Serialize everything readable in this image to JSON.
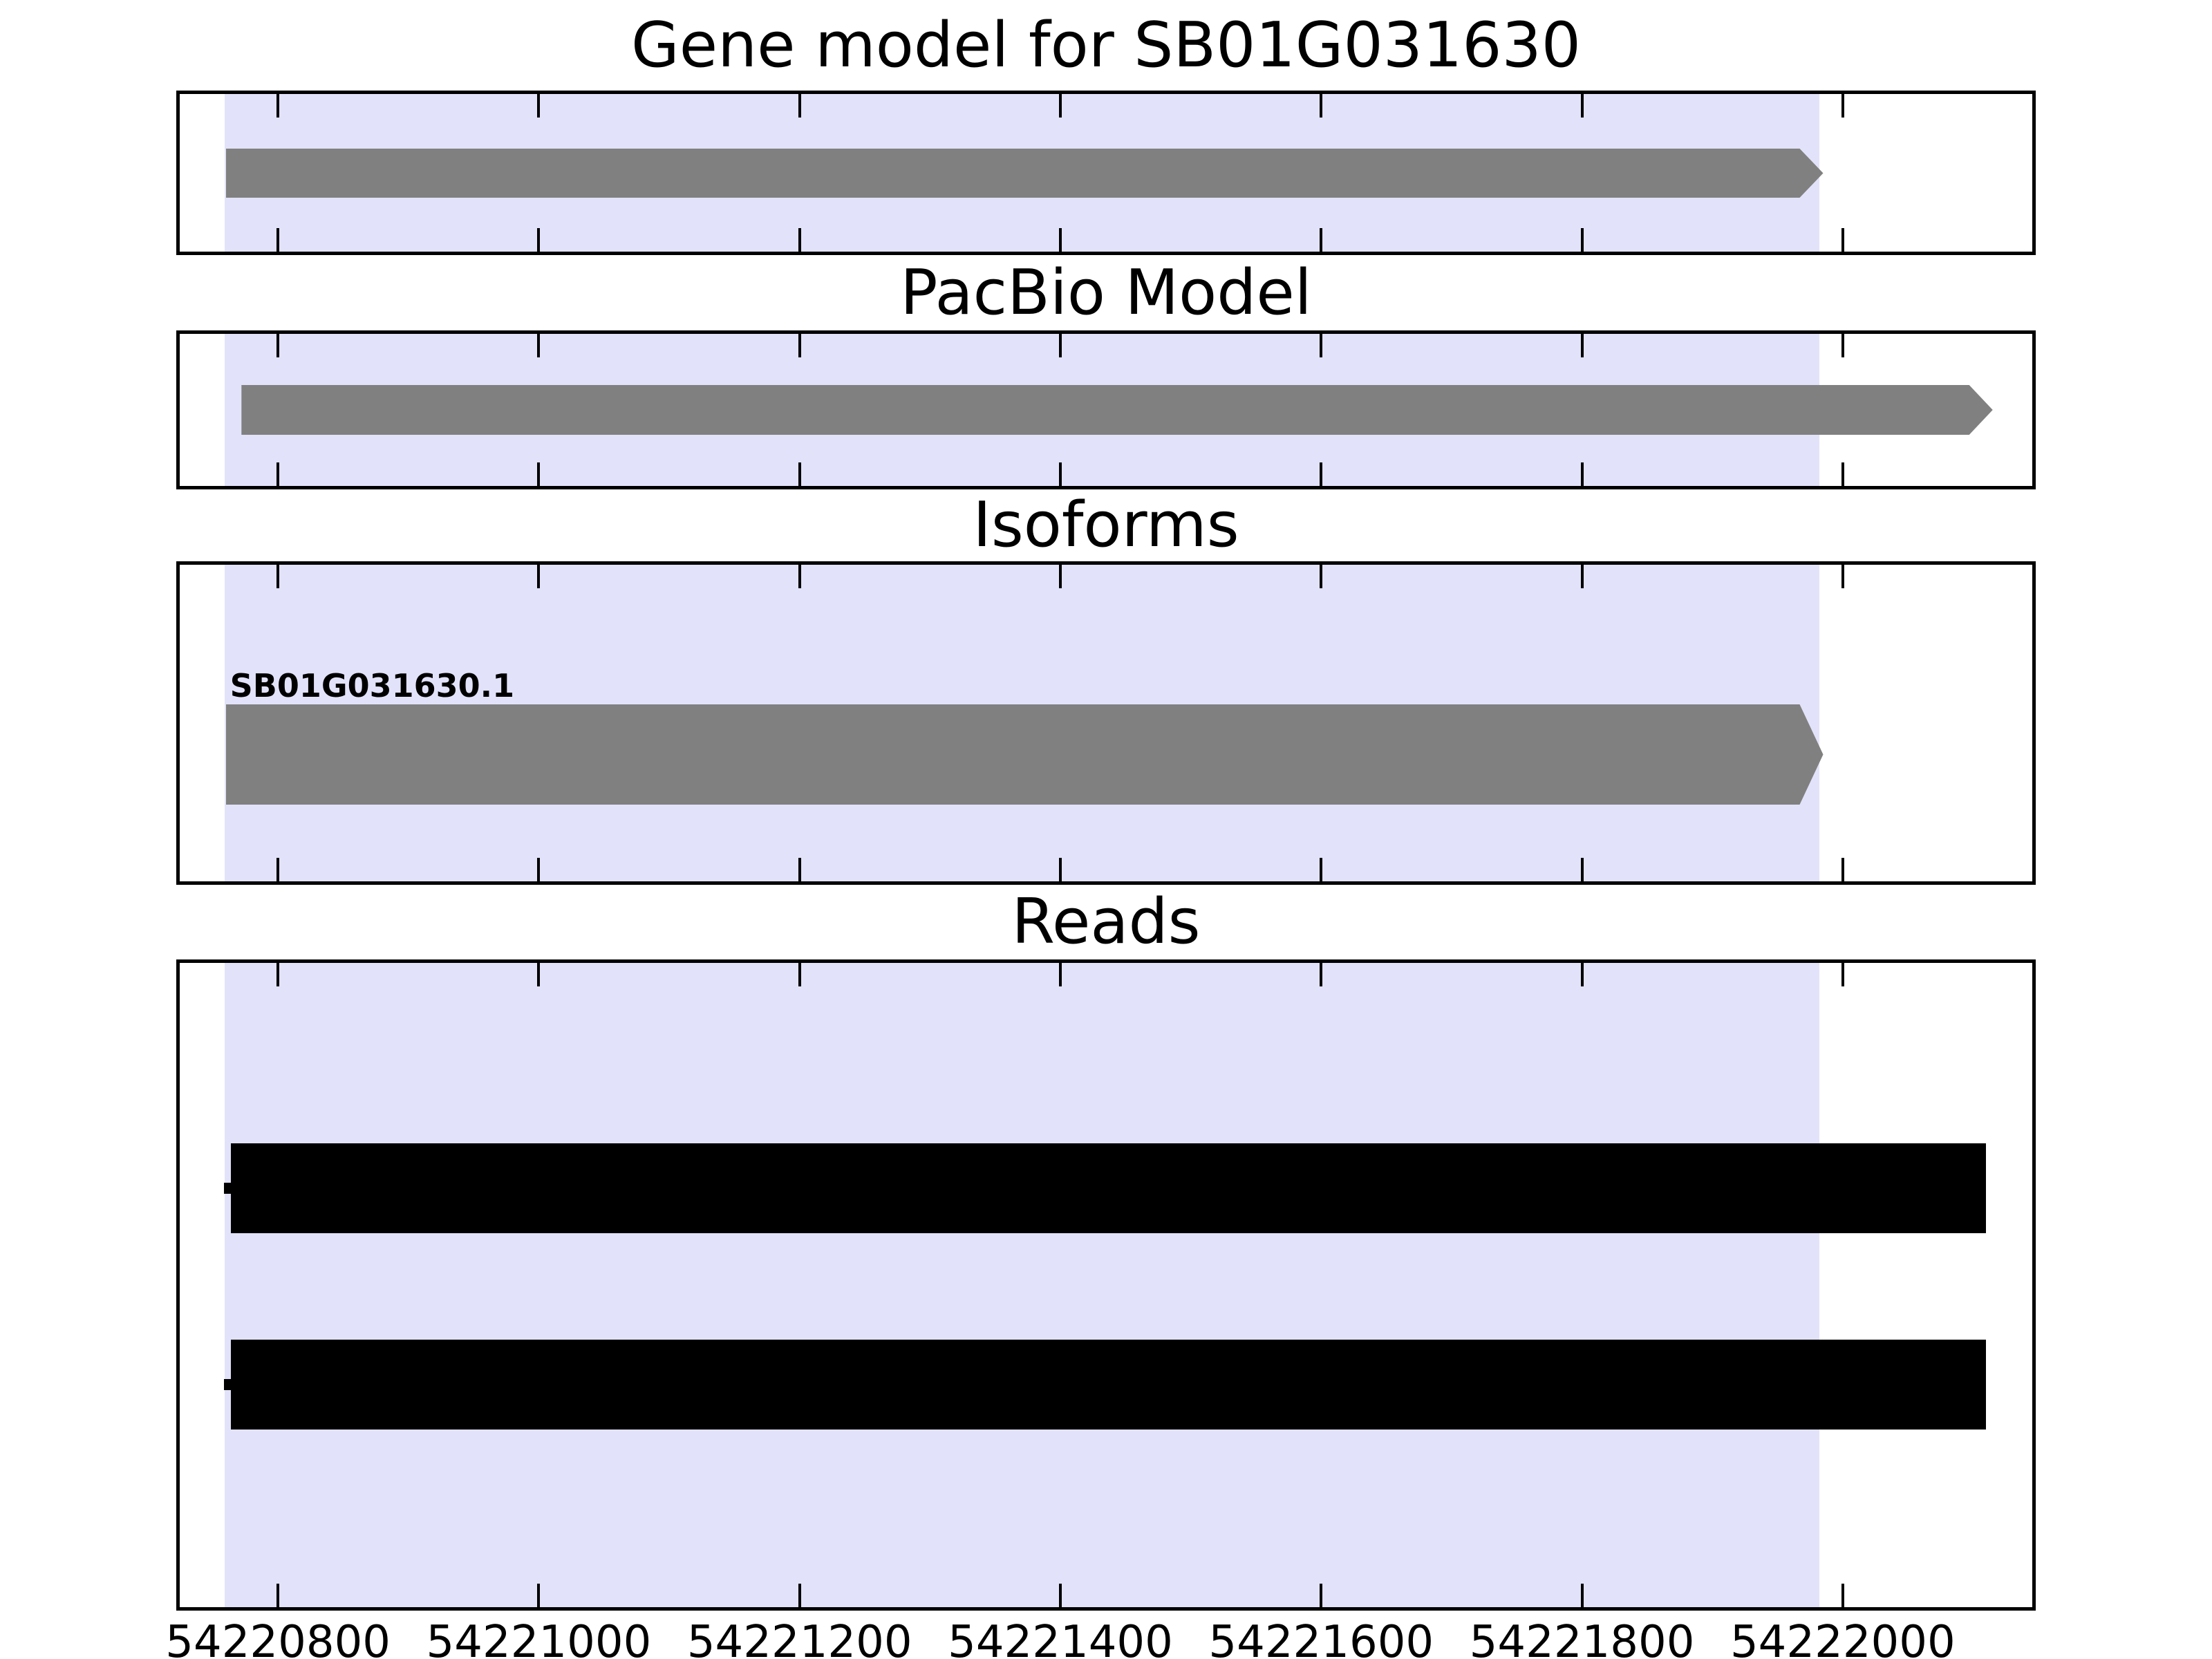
{
  "figure": {
    "background": "#ffffff",
    "border_color": "#000000",
    "text_color": "#000000"
  },
  "chart_data": {
    "type": "genomic-tracks",
    "title": "Gene model for SB01G031630",
    "x_axis": {
      "min": 54220722,
      "max": 54222148,
      "ticks": [
        54220800,
        54221000,
        54221200,
        54221400,
        54221600,
        54221800,
        54222000
      ],
      "tick_direction": "in",
      "grid": false,
      "legend": "none"
    },
    "highlight_region": {
      "start": 54220759,
      "end": 54221982,
      "color": "#E2E2FA"
    },
    "panels": [
      {
        "title": "Gene model for SB01G031630",
        "features": [
          {
            "kind": "gene-model",
            "shape": "arrow-right",
            "start": 54220760,
            "end": 54221985,
            "strand": "+",
            "color": "#808080"
          }
        ]
      },
      {
        "title": "PacBio Model",
        "features": [
          {
            "kind": "pacbio-model",
            "shape": "arrow-right",
            "start": 54220772,
            "end": 54222115,
            "strand": "+",
            "color": "#808080"
          }
        ]
      },
      {
        "title": "Isoforms",
        "features": [
          {
            "kind": "isoform",
            "label": "SB01G031630.1",
            "shape": "arrow-right",
            "start": 54220760,
            "end": 54221985,
            "strand": "+",
            "color": "#808080"
          }
        ]
      },
      {
        "title": "Reads",
        "features": [
          {
            "kind": "read",
            "shape": "rect-with-start-notch",
            "start": 54220764,
            "end": 54222110,
            "color": "#000000"
          },
          {
            "kind": "read",
            "shape": "rect-with-start-notch",
            "start": 54220764,
            "end": 54222110,
            "color": "#000000"
          }
        ]
      }
    ]
  }
}
